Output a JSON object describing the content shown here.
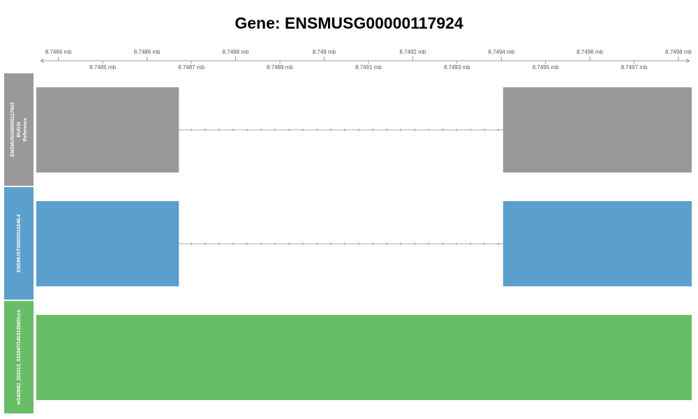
{
  "title": "Gene: ENSMUSG00000117924",
  "axis": {
    "unit": "mb",
    "range": [
      8.74835,
      8.74983
    ],
    "ticks_upper": [
      {
        "value": 8.7484,
        "label": "8.7484 mb"
      },
      {
        "value": 8.7486,
        "label": "8.7486 mb"
      },
      {
        "value": 8.7488,
        "label": "8.7488 mb"
      },
      {
        "value": 8.749,
        "label": "8.749 mb"
      },
      {
        "value": 8.7492,
        "label": "8.7492 mb"
      },
      {
        "value": 8.7494,
        "label": "8.7494 mb"
      },
      {
        "value": 8.7496,
        "label": "8.7496 mb"
      },
      {
        "value": 8.7498,
        "label": "8.7498 mb"
      }
    ],
    "ticks_lower": [
      {
        "value": 8.7485,
        "label": "8.7485 mb"
      },
      {
        "value": 8.7487,
        "label": "8.7487 mb"
      },
      {
        "value": 8.7489,
        "label": "8.7489 mb"
      },
      {
        "value": 8.7491,
        "label": "8.7491 mb"
      },
      {
        "value": 8.7493,
        "label": "8.7493 mb"
      },
      {
        "value": 8.7495,
        "label": "8.7495 mb"
      },
      {
        "value": 8.7497,
        "label": "8.7497 mb"
      }
    ]
  },
  "tracks": [
    {
      "label_lines": [
        "ENSMUSG00000117924",
        "BUGSI",
        "Reference"
      ],
      "color": "#999999",
      "strand": "+",
      "exons": [
        [
          8.74835,
          8.748672
        ],
        [
          8.749404,
          8.74983
        ]
      ]
    },
    {
      "label_lines": [
        "ENSMUST00000010248.4"
      ],
      "color": "#5b9fcc",
      "strand": "+",
      "exons": [
        [
          8.74835,
          8.748672
        ],
        [
          8.749404,
          8.74983
        ]
      ]
    },
    {
      "label_lines": [
        "m54284U_201013_031047/140313560/ccs"
      ],
      "color": "#68be68",
      "strand": "+",
      "exons": [
        [
          8.74835,
          8.74983
        ]
      ]
    }
  ],
  "colors": {
    "axis": "#999999",
    "intron": "#aaaaaa",
    "title": "#000000"
  }
}
